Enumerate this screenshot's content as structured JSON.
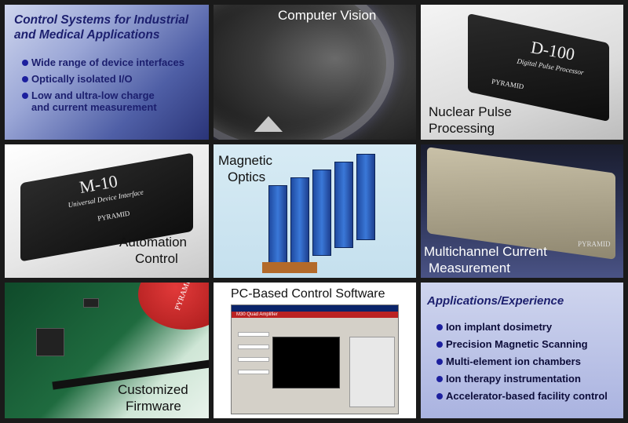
{
  "panels": {
    "control_systems": {
      "title_line1": "Control Systems for Industrial",
      "title_line2": "and Medical Applications",
      "bullets": [
        "Wide range of device interfaces",
        "Optically isolated I/O",
        "Low and ultra-low charge",
        "and current measurement"
      ]
    },
    "computer_vision": {
      "caption": "Computer Vision"
    },
    "nuclear_pulse": {
      "caption_line1": "Nuclear Pulse",
      "caption_line2": "Processing",
      "device_label": "D-100",
      "device_sub": "Digital Pulse Processor",
      "brand": "PYRAMID"
    },
    "automation": {
      "caption_line1": "Automation",
      "caption_line2": "Control",
      "device_label": "M-10",
      "device_sub": "Universal Device Interface",
      "brand": "PYRAMID"
    },
    "magnetic_optics": {
      "caption_line1": "Magnetic",
      "caption_line2": "Optics"
    },
    "multichannel": {
      "caption_line1": "Multichannel Current",
      "caption_line2": "Measurement",
      "brand": "PYRAMID"
    },
    "firmware": {
      "caption_line1": "Customized",
      "caption_line2": "Firmware",
      "disc_text": "PYRAMID"
    },
    "pc_software": {
      "caption": "PC-Based Control Software",
      "window_title": "M30 Quad Amplifier"
    },
    "applications": {
      "title": "Applications/Experience",
      "bullets": [
        "Ion implant dosimetry",
        "Precision Magnetic Scanning",
        "Multi-element ion chambers",
        "Ion therapy instrumentation",
        "Accelerator-based facility control"
      ]
    }
  },
  "colors": {
    "title_blue": "#1c1f6e",
    "bullet_dot": "#1c1f9e",
    "frame": "#1a1a1a"
  }
}
